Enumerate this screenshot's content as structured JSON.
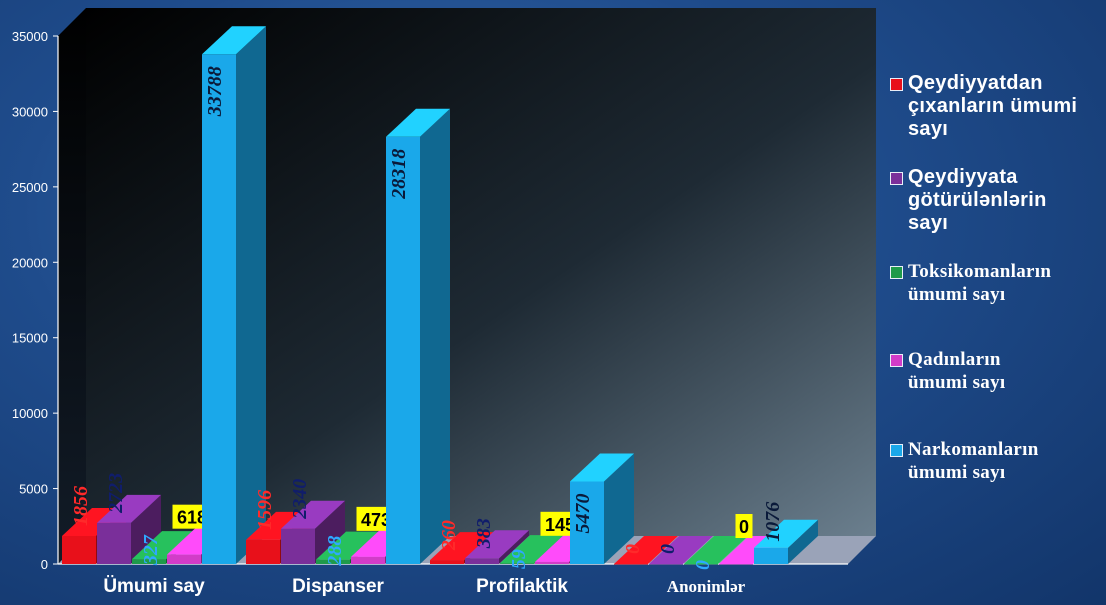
{
  "chart_data": {
    "type": "bar",
    "categories": [
      "Ümumi say",
      "Dispanser",
      "Profilaktik",
      "Anonimlər"
    ],
    "yticks": [
      "0",
      "5000",
      "10000",
      "15000",
      "20000",
      "25000",
      "30000",
      "35000"
    ],
    "ylim": [
      0,
      35000
    ],
    "legend_position": "right",
    "series": [
      {
        "name": "Qeydiyyatdan\nçıxanların ümumi\nsayı",
        "color": "#e8101a",
        "label_color": "#ff2a2a",
        "values": [
          1856,
          1596,
          260,
          0
        ],
        "labels": [
          "1856",
          "1596",
          "260",
          "0"
        ]
      },
      {
        "name": "Qeydiyyata\ngötürülənlərin\nsayı",
        "color": "#7a2f9a",
        "label_color": "#101d6b",
        "values": [
          2723,
          2340,
          383,
          0
        ],
        "labels": [
          "2723",
          "2340",
          "383",
          "0"
        ]
      },
      {
        "name": "Toksikomanların\nümumi sayı",
        "color": "#1f9a4a",
        "label_color": "#2ea8ff",
        "values": [
          327,
          288,
          59,
          0
        ],
        "labels": [
          "327",
          "288",
          "59",
          "0"
        ]
      },
      {
        "name": "Qadınların\nümumi sayı",
        "color": "#d23cc8",
        "label_color": "#000000",
        "values": [
          618,
          473,
          145,
          0
        ],
        "labels": [
          "618",
          "473",
          "145",
          "0"
        ],
        "label_bg": "#ffff00"
      },
      {
        "name": "Narkomanların\nümumi sayı",
        "color": "#1aa8ea",
        "label_color": "#0a1a3a",
        "values": [
          33788,
          28318,
          5470,
          1076
        ],
        "labels": [
          "33788",
          "28318",
          "5470",
          "1076"
        ]
      }
    ]
  }
}
